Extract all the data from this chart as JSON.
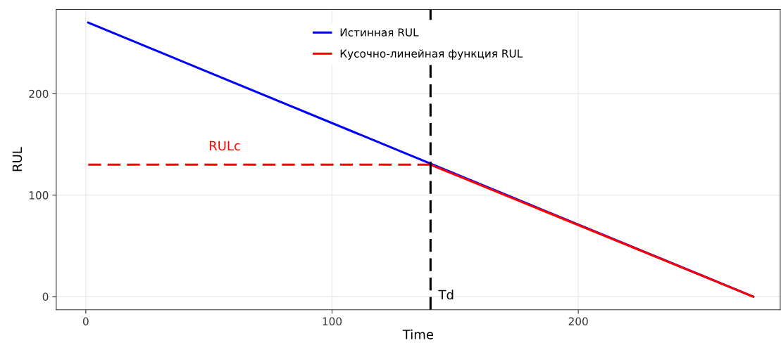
{
  "chart_data": {
    "type": "line",
    "xlabel": "Time",
    "ylabel": "RUL",
    "xlim": [
      -12,
      282
    ],
    "ylim": [
      -13,
      283
    ],
    "xticks": [
      0,
      100,
      200
    ],
    "yticks": [
      0,
      100,
      200
    ],
    "grid": true,
    "legend": "top",
    "series": [
      {
        "name": "Истинная RUL",
        "color": "#0000ff",
        "x": [
          1,
          271
        ],
        "values": [
          270,
          0
        ]
      },
      {
        "name": "Кусочно-линейная функция RUL",
        "color": "#ff0000",
        "x": [
          140,
          271
        ],
        "values": [
          130,
          0
        ]
      },
      {
        "name": "RULc",
        "color": "#ff0000",
        "x": [
          1,
          140
        ],
        "values": [
          130,
          130
        ],
        "line_style": "dashed"
      }
    ],
    "ref_lines": [
      {
        "axis": "x",
        "value": 140,
        "label": "Td",
        "color": "#000000",
        "line_style": "dashed"
      }
    ]
  }
}
